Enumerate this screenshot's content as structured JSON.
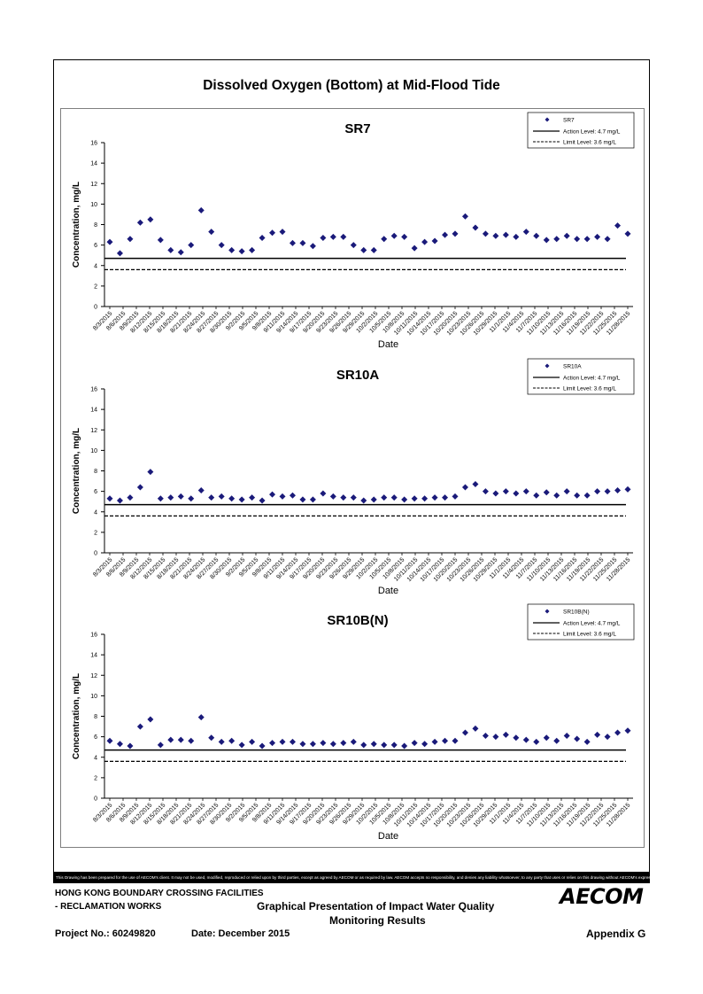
{
  "page": {
    "title": "Dissolved Oxygen (Bottom) at Mid-Flood Tide"
  },
  "footer": {
    "disclaimer": "This Drawing has been prepared for the use of AECOM's client. It may not be used, modified, reproduced or relied upon by third parties, except as agreed by AECOM or as required by law. AECOM accepts no responsibility, and denies any liability whatsoever, to any party that uses or relies on this drawing without AECOM's express written consent.",
    "project_line1": "HONG KONG BOUNDARY CROSSING FACILITIES",
    "project_line2": "- RECLAMATION WORKS",
    "doc_title_line1": "Graphical Presentation of Impact Water Quality",
    "doc_title_line2": "Monitoring Results",
    "project_no": "Project No.: 60249820",
    "date": "Date: December 2015",
    "appendix": "Appendix G",
    "logo_text": "AECOM"
  },
  "chart_data": [
    {
      "type": "scatter",
      "title": "SR7",
      "xlabel": "Date",
      "ylabel": "Concentration, mg/L",
      "ylim": [
        0,
        16
      ],
      "yticks": [
        0,
        2,
        4,
        6,
        8,
        10,
        12,
        14,
        16
      ],
      "x_tick_labels": [
        "8/3/2015",
        "8/6/2015",
        "8/9/2015",
        "8/12/2015",
        "8/15/2015",
        "8/18/2015",
        "8/21/2015",
        "8/24/2015",
        "8/27/2015",
        "8/30/2015",
        "9/2/2015",
        "9/5/2015",
        "9/8/2015",
        "9/11/2015",
        "9/14/2015",
        "9/17/2015",
        "9/20/2015",
        "9/23/2015",
        "9/26/2015",
        "9/29/2015",
        "10/2/2015",
        "10/5/2015",
        "10/8/2015",
        "10/11/2015",
        "10/14/2015",
        "10/17/2015",
        "10/20/2015",
        "10/23/2015",
        "10/26/2015",
        "10/29/2015",
        "11/1/2015",
        "11/4/2015",
        "11/7/2015",
        "11/10/2015",
        "11/13/2015",
        "11/16/2015",
        "11/19/2015",
        "11/22/2015",
        "11/25/2015",
        "11/28/2015"
      ],
      "series": [
        {
          "name": "SR7",
          "marker": "diamond",
          "color": "#1a1a7a",
          "values": [
            6.3,
            5.2,
            6.6,
            8.2,
            8.5,
            6.5,
            5.5,
            5.3,
            6.0,
            9.4,
            7.3,
            6.0,
            5.5,
            5.4,
            5.5,
            6.7,
            7.2,
            7.3,
            6.2,
            6.2,
            5.9,
            6.7,
            6.8,
            6.8,
            6.0,
            5.5,
            5.5,
            6.6,
            6.9,
            6.8,
            5.7,
            6.3,
            6.4,
            7.0,
            7.1,
            8.8,
            7.7,
            7.1,
            6.9,
            7.0,
            6.8,
            7.3,
            6.9,
            6.5,
            6.6,
            6.9,
            6.6,
            6.6,
            6.8,
            6.6,
            7.9,
            7.1
          ]
        },
        {
          "name": "Action Level: 4.7 mg/L",
          "style": "solid",
          "value": 4.7
        },
        {
          "name": "Limit Level: 3.6 mg/L",
          "style": "dashed",
          "value": 3.6
        }
      ],
      "legend": "top-right",
      "grid": false
    },
    {
      "type": "scatter",
      "title": "SR10A",
      "xlabel": "Date",
      "ylabel": "Concentration, mg/L",
      "ylim": [
        0,
        16
      ],
      "yticks": [
        0,
        2,
        4,
        6,
        8,
        10,
        12,
        14,
        16
      ],
      "x_tick_labels": [
        "8/3/2015",
        "8/6/2015",
        "8/9/2015",
        "8/12/2015",
        "8/15/2015",
        "8/18/2015",
        "8/21/2015",
        "8/24/2015",
        "8/27/2015",
        "8/30/2015",
        "9/2/2015",
        "9/5/2015",
        "9/8/2015",
        "9/11/2015",
        "9/14/2015",
        "9/17/2015",
        "9/20/2015",
        "9/23/2015",
        "9/26/2015",
        "9/29/2015",
        "10/2/2015",
        "10/5/2015",
        "10/8/2015",
        "10/11/2015",
        "10/14/2015",
        "10/17/2015",
        "10/20/2015",
        "10/23/2015",
        "10/26/2015",
        "10/29/2015",
        "11/1/2015",
        "11/4/2015",
        "11/7/2015",
        "11/10/2015",
        "11/13/2015",
        "11/16/2015",
        "11/19/2015",
        "11/22/2015",
        "11/25/2015",
        "11/28/2015"
      ],
      "series": [
        {
          "name": "SR10A",
          "marker": "diamond",
          "color": "#1a1a7a",
          "values": [
            5.3,
            5.1,
            5.4,
            6.4,
            7.9,
            5.3,
            5.4,
            5.5,
            5.3,
            6.1,
            5.4,
            5.5,
            5.3,
            5.2,
            5.4,
            5.1,
            5.7,
            5.5,
            5.6,
            5.2,
            5.2,
            5.8,
            5.5,
            5.4,
            5.4,
            5.1,
            5.2,
            5.4,
            5.4,
            5.2,
            5.3,
            5.3,
            5.4,
            5.4,
            5.5,
            6.4,
            6.7,
            6.0,
            5.8,
            6.0,
            5.8,
            6.0,
            5.6,
            5.9,
            5.6,
            6.0,
            5.6,
            5.6,
            6.0,
            6.0,
            6.1,
            6.2
          ]
        },
        {
          "name": "Action Level: 4.7 mg/L",
          "style": "solid",
          "value": 4.7
        },
        {
          "name": "Limit Level: 3.6 mg/L",
          "style": "dashed",
          "value": 3.6
        }
      ],
      "legend": "top-right",
      "grid": false
    },
    {
      "type": "scatter",
      "title": "SR10B(N)",
      "xlabel": "Date",
      "ylabel": "Concentration, mg/L",
      "ylim": [
        0,
        16
      ],
      "yticks": [
        0,
        2,
        4,
        6,
        8,
        10,
        12,
        14,
        16
      ],
      "x_tick_labels": [
        "8/3/2015",
        "8/6/2015",
        "8/9/2015",
        "8/12/2015",
        "8/15/2015",
        "8/18/2015",
        "8/21/2015",
        "8/24/2015",
        "8/27/2015",
        "8/30/2015",
        "9/2/2015",
        "9/5/2015",
        "9/8/2015",
        "9/11/2015",
        "9/14/2015",
        "9/17/2015",
        "9/20/2015",
        "9/23/2015",
        "9/26/2015",
        "9/29/2015",
        "10/2/2015",
        "10/5/2015",
        "10/8/2015",
        "10/11/2015",
        "10/14/2015",
        "10/17/2015",
        "10/20/2015",
        "10/23/2015",
        "10/26/2015",
        "10/29/2015",
        "11/1/2015",
        "11/4/2015",
        "11/7/2015",
        "11/10/2015",
        "11/13/2015",
        "11/16/2015",
        "11/19/2015",
        "11/22/2015",
        "11/25/2015",
        "11/28/2015"
      ],
      "series": [
        {
          "name": "SR10B(N)",
          "marker": "diamond",
          "color": "#1a1a7a",
          "values": [
            5.6,
            5.3,
            5.1,
            7.0,
            7.7,
            5.2,
            5.7,
            5.7,
            5.6,
            7.9,
            5.9,
            5.5,
            5.6,
            5.2,
            5.5,
            5.1,
            5.4,
            5.5,
            5.5,
            5.3,
            5.3,
            5.4,
            5.3,
            5.4,
            5.5,
            5.2,
            5.3,
            5.2,
            5.2,
            5.1,
            5.4,
            5.3,
            5.5,
            5.6,
            5.6,
            6.4,
            6.8,
            6.1,
            6.0,
            6.2,
            5.9,
            5.7,
            5.5,
            5.9,
            5.6,
            6.1,
            5.8,
            5.5,
            6.2,
            6.0,
            6.4,
            6.6
          ]
        },
        {
          "name": "Action Level: 4.7 mg/L",
          "style": "solid",
          "value": 4.7
        },
        {
          "name": "Limit Level: 3.6 mg/L",
          "style": "dashed",
          "value": 3.6
        }
      ],
      "legend": "top-right",
      "grid": false
    }
  ]
}
